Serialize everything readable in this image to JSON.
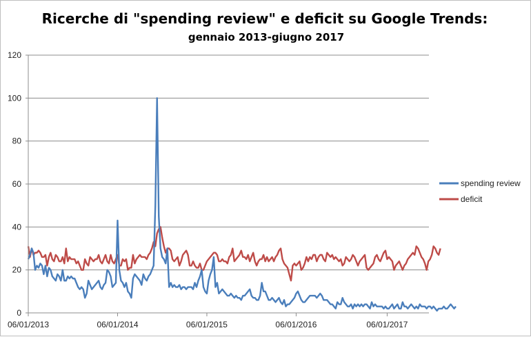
{
  "colors": {
    "spending": "#4a7ebb",
    "deficit": "#be4b48",
    "grid": "#8c8c8c"
  },
  "chart_data": {
    "type": "line",
    "title": "Ricerche di \"spending review\" e deficit su Google Trends:",
    "subtitle": "gennaio 2013-giugno 2017",
    "xlabel": "",
    "ylabel": "",
    "ylim": [
      0,
      120
    ],
    "yticks": [
      0,
      20,
      40,
      60,
      80,
      100,
      120
    ],
    "xticks": [
      {
        "label": "06/01/2013",
        "week": 0
      },
      {
        "label": "06/01/2014",
        "week": 52
      },
      {
        "label": "06/01/2015",
        "week": 104
      },
      {
        "label": "06/01/2016",
        "week": 156
      },
      {
        "label": "06/01/2017",
        "week": 209
      }
    ],
    "x_range_weeks": [
      0,
      235
    ],
    "legend_position": "right",
    "series": [
      {
        "name": "spending review",
        "values": [
          25,
          27,
          30,
          28,
          20,
          22,
          21,
          23,
          22,
          18,
          22,
          17,
          21,
          20,
          17,
          16,
          15,
          18,
          17,
          15,
          20,
          15,
          15,
          17,
          16,
          17,
          16,
          16,
          14,
          12,
          11,
          12,
          11,
          7,
          9,
          15,
          13,
          11,
          12,
          13,
          14,
          15,
          12,
          11,
          13,
          14,
          20,
          19,
          17,
          12,
          13,
          14,
          43,
          20,
          15,
          14,
          12,
          14,
          10,
          9,
          7,
          16,
          18,
          17,
          16,
          15,
          13,
          18,
          16,
          15,
          17,
          18,
          20,
          22,
          50,
          100,
          45,
          30,
          26,
          25,
          23,
          30,
          12,
          14,
          12,
          13,
          12,
          12,
          13,
          11,
          12,
          12,
          11,
          12,
          12,
          12,
          11,
          14,
          12,
          15,
          17,
          20,
          12,
          10,
          9,
          15,
          18,
          20,
          26,
          12,
          14,
          9,
          10,
          11,
          10,
          9,
          8,
          8,
          9,
          8,
          7,
          8,
          7,
          7,
          6,
          8,
          8,
          9,
          10,
          11,
          8,
          7,
          7,
          6,
          6,
          8,
          14,
          10,
          10,
          8,
          6,
          6,
          7,
          6,
          5,
          6,
          7,
          5,
          4,
          6,
          3,
          4,
          4,
          5,
          6,
          7,
          9,
          10,
          8,
          6,
          5,
          5,
          6,
          7,
          8,
          8,
          8,
          8,
          7,
          8,
          9,
          8,
          6,
          6,
          6,
          5,
          4,
          4,
          3,
          2,
          5,
          4,
          4,
          7,
          5,
          4,
          3,
          3,
          4,
          2,
          4,
          3,
          4,
          3,
          4,
          3,
          4,
          4,
          3,
          2,
          5,
          3,
          4,
          3,
          3,
          3,
          3,
          2,
          3,
          2,
          2,
          3,
          4,
          2,
          3,
          4,
          2,
          2,
          5,
          3,
          3,
          2,
          3,
          4,
          3,
          2,
          3,
          2,
          4,
          3,
          3,
          3,
          2,
          3,
          3,
          2,
          3,
          2,
          1,
          2,
          2,
          2,
          3,
          2,
          2,
          3,
          4,
          3,
          2,
          3
        ],
        "color": "#4a7ebb"
      },
      {
        "name": "deficit",
        "values": [
          31,
          26,
          30,
          27,
          28,
          28,
          29,
          28,
          26,
          26,
          27,
          22,
          26,
          28,
          25,
          24,
          27,
          26,
          24,
          24,
          26,
          23,
          30,
          24,
          26,
          25,
          25,
          25,
          23,
          24,
          22,
          20,
          20,
          25,
          23,
          22,
          26,
          25,
          24,
          25,
          25,
          27,
          24,
          23,
          25,
          27,
          24,
          23,
          27,
          24,
          23,
          25,
          27,
          22,
          22,
          25,
          24,
          25,
          20,
          21,
          21,
          27,
          23,
          25,
          26,
          27,
          26,
          26,
          26,
          25,
          27,
          28,
          30,
          33,
          31,
          37,
          39,
          40,
          35,
          31,
          28,
          30,
          30,
          29,
          25,
          24,
          25,
          26,
          22,
          24,
          27,
          28,
          29,
          27,
          22,
          22,
          24,
          22,
          21,
          21,
          23,
          20,
          20,
          22,
          24,
          25,
          26,
          27,
          28,
          28,
          27,
          24,
          24,
          25,
          24,
          24,
          23,
          26,
          27,
          30,
          24,
          25,
          26,
          27,
          29,
          26,
          26,
          25,
          27,
          24,
          26,
          28,
          24,
          22,
          24,
          25,
          25,
          27,
          24,
          26,
          24,
          25,
          26,
          24,
          26,
          27,
          29,
          30,
          25,
          23,
          22,
          21,
          18,
          15,
          22,
          23,
          22,
          23,
          24,
          20,
          21,
          23,
          26,
          24,
          26,
          25,
          27,
          27,
          24,
          26,
          27,
          27,
          25,
          24,
          28,
          27,
          26,
          27,
          25,
          26,
          25,
          24,
          25,
          22,
          23,
          26,
          25,
          24,
          25,
          27,
          26,
          24,
          22,
          24,
          25,
          26,
          27,
          21,
          20,
          21,
          22,
          23,
          26,
          27,
          25,
          24,
          26,
          28,
          29,
          25,
          26,
          25,
          24,
          20,
          22,
          23,
          24,
          22,
          20,
          22,
          23,
          25,
          26,
          27,
          28,
          27,
          31,
          30,
          28,
          26,
          25,
          23,
          20,
          24,
          25,
          27,
          31,
          30,
          28,
          27,
          30
        ],
        "color": "#be4b48"
      }
    ]
  }
}
